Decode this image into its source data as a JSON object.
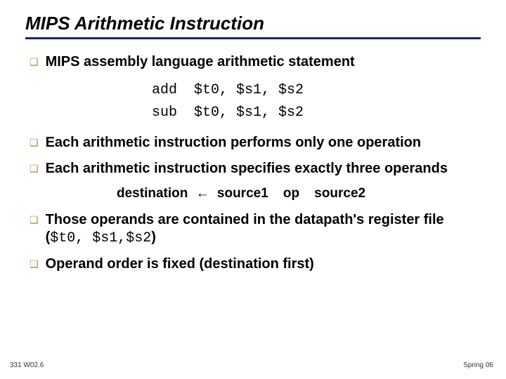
{
  "title": "MIPS Arithmetic Instruction",
  "bullets": {
    "b0": "MIPS assembly language arithmetic statement",
    "b1": "Each arithmetic instruction performs only one operation",
    "b2": "Each arithmetic instruction specifies exactly three operands",
    "b3_pre": "Those operands are contained in the datapath's register file (",
    "b3_code": "$t0, $s1,$s2",
    "b3_post": ")",
    "b4": "Operand order is fixed (destination first)"
  },
  "code": {
    "line1": "add  $t0, $s1, $s2",
    "line2": "sub  $t0, $s1, $s2"
  },
  "formula": {
    "dest": "destination",
    "arrow": "←",
    "src1": "source1",
    "op": "op",
    "src2": "source2"
  },
  "footer": {
    "left": "331 W02.6",
    "right": "Spring 06"
  },
  "bullet_glyph": "❑",
  "colors": {
    "title_underline": "#1a237e",
    "bullet_marker": "#b18b3b",
    "background": "#ffffff"
  }
}
